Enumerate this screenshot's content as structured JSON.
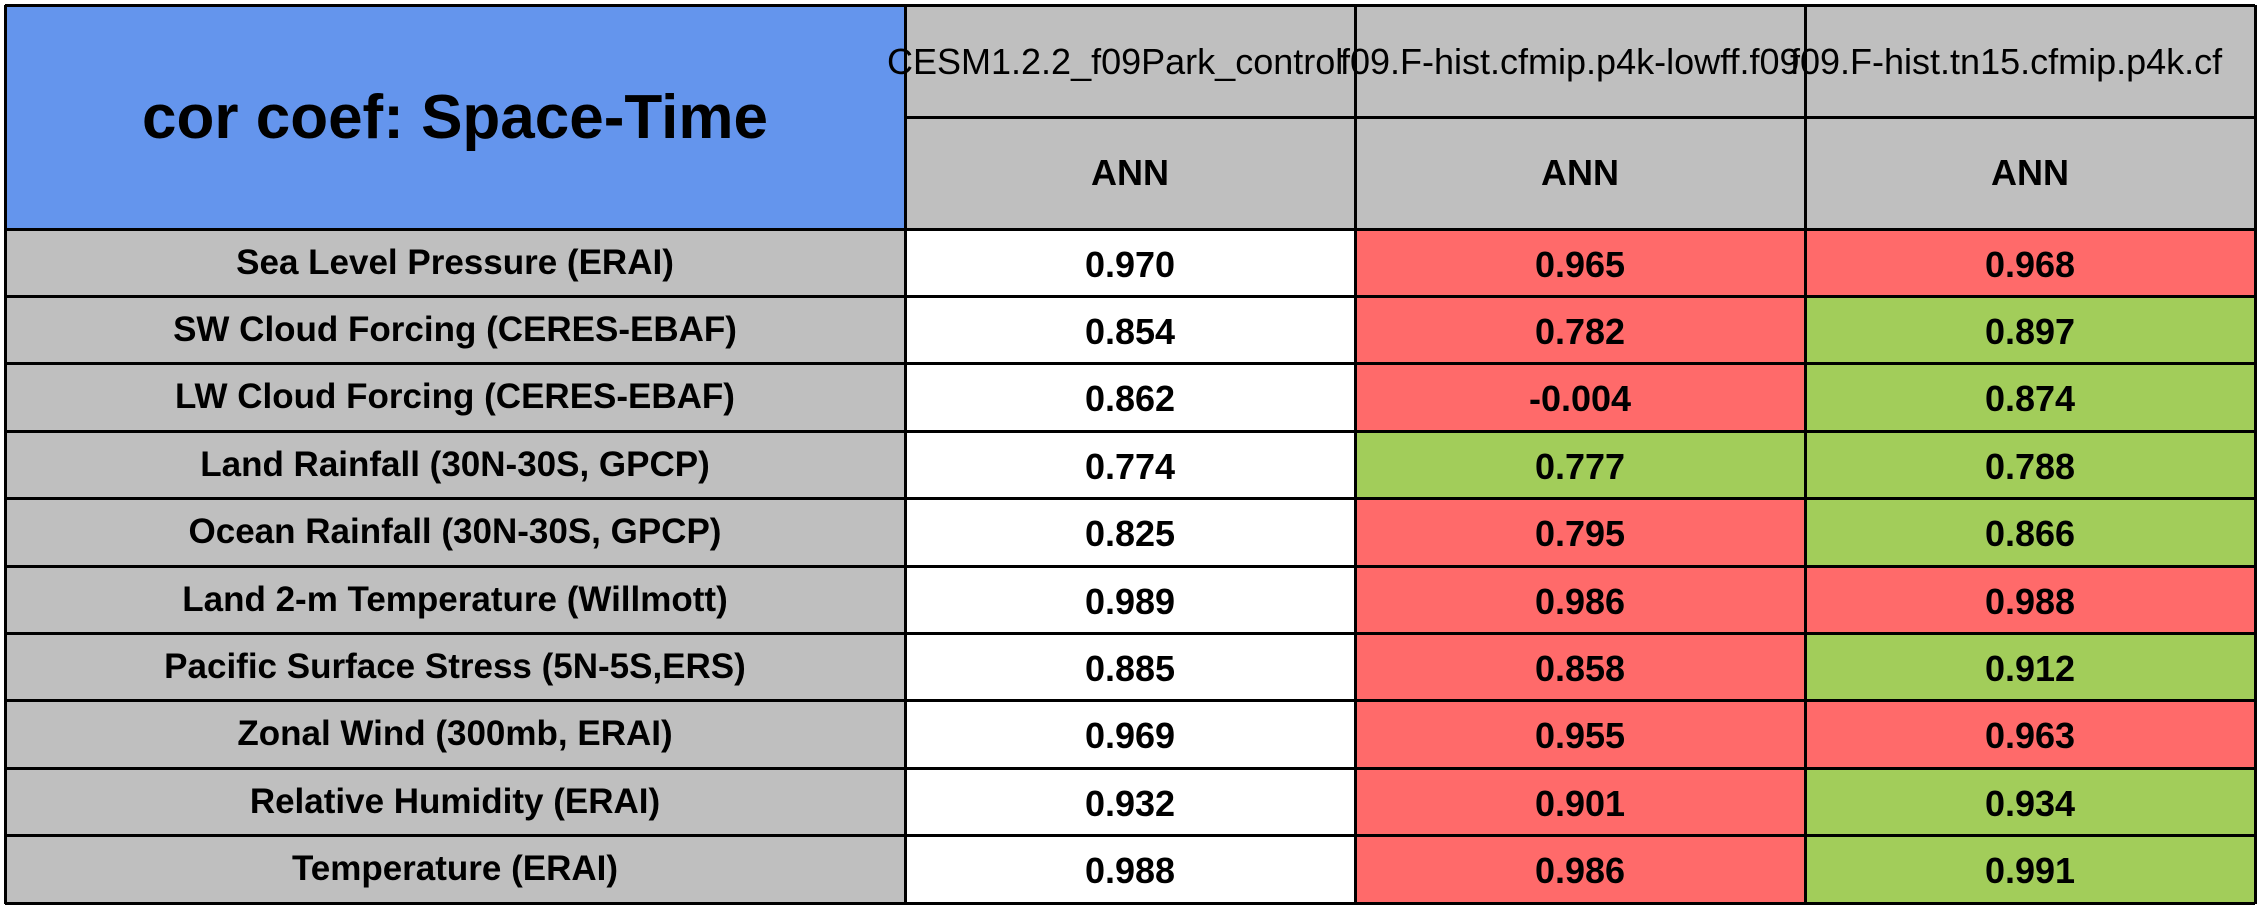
{
  "chart_data": {
    "type": "table",
    "title": "cor coef: Space-Time",
    "columns": [
      {
        "model": "CESM1.2.2_f09Park_control",
        "season": "ANN"
      },
      {
        "model": "f09.F-hist.cfmip.p4k-lowff.f09",
        "season": "ANN"
      },
      {
        "model": "f09.F-hist.tn15.cfmip.p4k.cf",
        "season": "ANN"
      }
    ],
    "rows": [
      {
        "label": "Sea Level Pressure (ERAI)",
        "values": [
          "0.970",
          "0.965",
          "0.968"
        ]
      },
      {
        "label": "SW Cloud Forcing (CERES-EBAF)",
        "values": [
          "0.854",
          "0.782",
          "0.897"
        ]
      },
      {
        "label": "LW Cloud Forcing (CERES-EBAF)",
        "values": [
          "0.862",
          "-0.004",
          "0.874"
        ]
      },
      {
        "label": "Land Rainfall (30N-30S, GPCP)",
        "values": [
          "0.774",
          "0.777",
          "0.788"
        ]
      },
      {
        "label": "Ocean Rainfall (30N-30S, GPCP)",
        "values": [
          "0.825",
          "0.795",
          "0.866"
        ]
      },
      {
        "label": "Land 2-m Temperature (Willmott)",
        "values": [
          "0.989",
          "0.986",
          "0.988"
        ]
      },
      {
        "label": "Pacific Surface Stress (5N-5S,ERS)",
        "values": [
          "0.885",
          "0.858",
          "0.912"
        ]
      },
      {
        "label": "Zonal Wind (300mb, ERAI)",
        "values": [
          "0.969",
          "0.955",
          "0.963"
        ]
      },
      {
        "label": "Relative Humidity (ERAI)",
        "values": [
          "0.932",
          "0.901",
          "0.934"
        ]
      },
      {
        "label": "Temperature (ERAI)",
        "values": [
          "0.988",
          "0.986",
          "0.991"
        ]
      }
    ],
    "cell_status": [
      [
        "base",
        "worse",
        "worse"
      ],
      [
        "base",
        "worse",
        "better"
      ],
      [
        "base",
        "worse",
        "better"
      ],
      [
        "base",
        "better",
        "better"
      ],
      [
        "base",
        "worse",
        "better"
      ],
      [
        "base",
        "worse",
        "worse"
      ],
      [
        "base",
        "worse",
        "better"
      ],
      [
        "base",
        "worse",
        "worse"
      ],
      [
        "base",
        "worse",
        "better"
      ],
      [
        "base",
        "worse",
        "better"
      ]
    ],
    "colors": {
      "title_bg": "#6495ed",
      "header_bg": "#bfbfbf",
      "base": "#ffffff",
      "worse": "#ff6a6a",
      "better": "#a2cd5a",
      "grid": "#000000"
    }
  }
}
